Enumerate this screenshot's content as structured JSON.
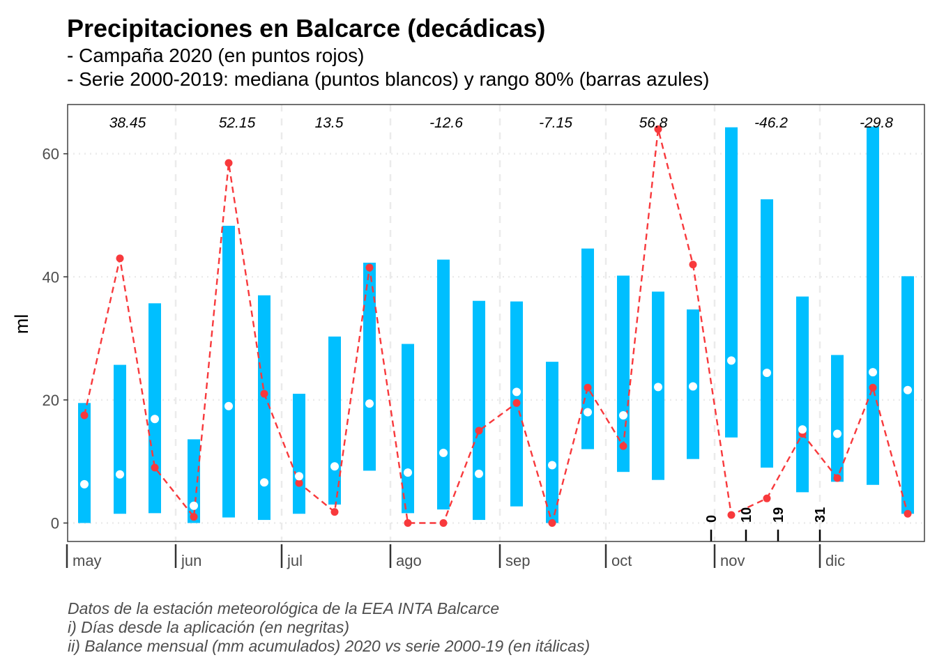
{
  "chart_data": {
    "type": "line",
    "title": "Precipitaciones en Balcarce (decádicas)",
    "subtitles": [
      "- Campaña 2020 (en puntos rojos)",
      "- Serie 2000-2019: mediana (puntos blancos) y rango 80% (barras azules)"
    ],
    "ylabel": "ml",
    "ylim": [
      -3,
      68
    ],
    "yticks": [
      0,
      20,
      40,
      60
    ],
    "grid": true,
    "months": [
      "may",
      "jun",
      "jul",
      "ago",
      "sep",
      "oct",
      "nov",
      "dic"
    ],
    "decades": [
      "may-1",
      "may-2",
      "may-3",
      "jun-1",
      "jun-2",
      "jun-3",
      "jul-1",
      "jul-2",
      "jul-3",
      "ago-1",
      "ago-2",
      "ago-3",
      "sep-1",
      "sep-2",
      "sep-3",
      "oct-1",
      "oct-2",
      "oct-3",
      "nov-1",
      "nov-2",
      "nov-3",
      "dic-1",
      "dic-2",
      "dic-3"
    ],
    "series": [
      {
        "name": "Campaña 2020",
        "style": "red dashed line with points",
        "values": [
          17.5,
          43.0,
          9.0,
          1.0,
          58.5,
          21.0,
          6.5,
          1.8,
          41.5,
          0.0,
          0.0,
          15.0,
          19.5,
          0.0,
          22.0,
          12.5,
          64.0,
          42.0,
          1.3,
          4.0,
          14.5,
          7.3,
          22.0,
          1.5
        ]
      },
      {
        "name": "Serie 2000-2019 mediana",
        "style": "white points",
        "values": [
          6.3,
          7.9,
          16.9,
          2.8,
          19.0,
          6.6,
          7.6,
          9.2,
          19.4,
          8.2,
          11.4,
          8.0,
          21.3,
          9.4,
          18.0,
          17.5,
          22.1,
          22.2,
          26.4,
          24.4,
          15.2,
          14.5,
          24.5,
          21.6
        ]
      },
      {
        "name": "Serie 2000-2019 rango 80%",
        "style": "blue bars",
        "low": [
          0.0,
          1.5,
          1.6,
          0.0,
          0.9,
          0.5,
          1.5,
          3.0,
          8.5,
          1.6,
          2.2,
          0.5,
          2.7,
          0.0,
          12.0,
          8.3,
          7.0,
          10.4,
          13.9,
          9.0,
          5.0,
          6.7,
          6.2,
          1.5
        ],
        "high": [
          19.5,
          25.7,
          35.7,
          13.6,
          48.3,
          37.0,
          21.0,
          30.3,
          42.3,
          29.1,
          42.8,
          36.1,
          36.0,
          26.2,
          44.6,
          40.2,
          37.6,
          34.7,
          64.3,
          52.6,
          36.8,
          27.3,
          64.4,
          40.1
        ]
      }
    ],
    "annotations": {
      "balance": [
        {
          "text": "38.45",
          "month": "may"
        },
        {
          "text": "52.15",
          "month": "jun"
        },
        {
          "text": "13.5",
          "month": "jul"
        },
        {
          "text": "-12.6",
          "month": "ago"
        },
        {
          "text": "-7.15",
          "month": "sep"
        },
        {
          "text": "56.8",
          "month": "oct"
        },
        {
          "text": "-46.2",
          "month": "nov"
        },
        {
          "text": "-29.8",
          "month": "dic"
        }
      ],
      "days_since_application": [
        "0",
        "10",
        "19",
        "31"
      ]
    },
    "colors": {
      "campaign": "#f8393c",
      "range": "#00bfff",
      "median": "#ffffff",
      "grid": "#ebebeb"
    }
  },
  "caption": [
    "Datos de la estación meteorológica de la EEA INTA Balcarce",
    "i) Días desde la aplicación (en negritas)",
    "ii) Balance mensual (mm acumulados) 2020 vs serie 2000-19 (en itálicas)"
  ]
}
